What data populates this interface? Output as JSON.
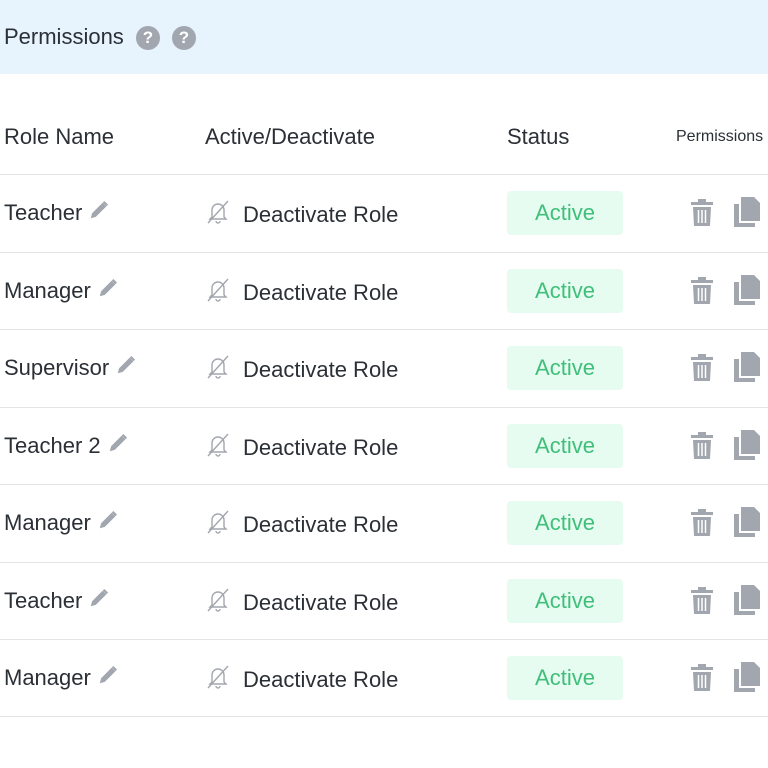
{
  "header": {
    "title": "Permissions",
    "help_icons": [
      "question-circle-icon",
      "question-circle-icon"
    ],
    "background": "#e7f3fd"
  },
  "table": {
    "columns": [
      "Role Name",
      "Active/Deactivate",
      "Status",
      "Permissions"
    ],
    "rows": [
      {
        "name": "Teacher",
        "action": "Deactivate Role",
        "status": "Active"
      },
      {
        "name": "Manager",
        "action": "Deactivate Role",
        "status": "Active"
      },
      {
        "name": "Supervisor",
        "action": "Deactivate Role",
        "status": "Active"
      },
      {
        "name": "Teacher 2",
        "action": "Deactivate Role",
        "status": "Active"
      },
      {
        "name": "Manager",
        "action": "Deactivate Role",
        "status": "Active"
      },
      {
        "name": "Teacher",
        "action": "Deactivate Role",
        "status": "Active"
      },
      {
        "name": "Manager",
        "action": "Deactivate Role",
        "status": "Active"
      }
    ]
  },
  "colors": {
    "status_active_text": "#3fbf7a",
    "status_active_bg": "#e6fcf0",
    "icon_gray": "#a2a6ae"
  }
}
